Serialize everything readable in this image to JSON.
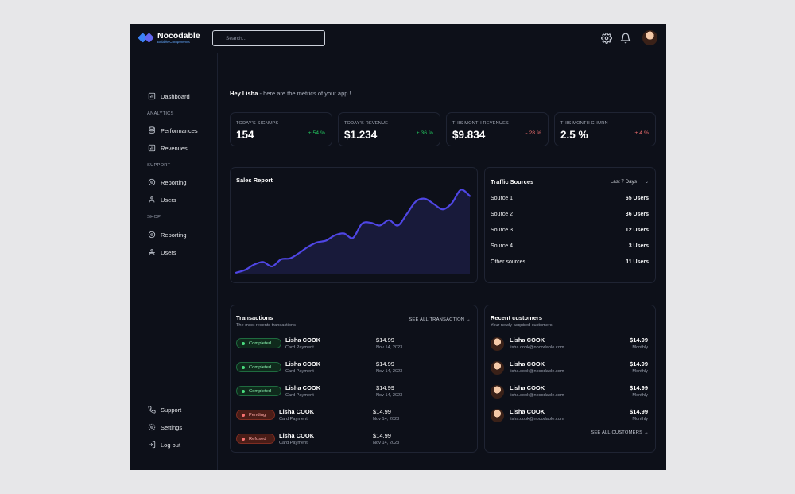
{
  "brand": {
    "name": "Nocodable",
    "subtitle": "Bubble Components",
    "accent": "#3b82f6"
  },
  "search": {
    "placeholder": "Search..."
  },
  "topbar": {
    "settings_icon": "gear-icon",
    "notifications_icon": "bell-icon"
  },
  "sidebar": {
    "dashboard": "Dashboard",
    "sections": [
      {
        "title": "ANALYTICS",
        "items": [
          "Performances",
          "Revenues"
        ]
      },
      {
        "title": "SUPPORT",
        "items": [
          "Reporting",
          "Users"
        ]
      },
      {
        "title": "SHOP",
        "items": [
          "Reporting",
          "Users"
        ]
      }
    ],
    "bottom": [
      "Support",
      "Settings",
      "Log out"
    ]
  },
  "greeting": {
    "name": "Hey Lisha",
    "message": " - here are the metrics of your app !"
  },
  "stats": [
    {
      "label": "TODAY'S SIGNUPS",
      "value": "154",
      "change": "+ 54 %",
      "trend": "up"
    },
    {
      "label": "TODAY'S REVENUE",
      "value": "$1.234",
      "change": "+ 36 %",
      "trend": "up"
    },
    {
      "label": "THIS MONTH REVENUES",
      "value": "$9.834",
      "change": "- 28 %",
      "trend": "down"
    },
    {
      "label": "THIS MONTH CHURN",
      "value": "2.5 %",
      "change": "+ 4 %",
      "trend": "down"
    }
  ],
  "sales_report": {
    "title": "Sales Report"
  },
  "chart_data": {
    "type": "area",
    "title": "Sales Report",
    "xlabel": "",
    "ylabel": "",
    "x": [
      0,
      1,
      2,
      3,
      4,
      5,
      6,
      7,
      8,
      9,
      10,
      11,
      12,
      13,
      14,
      15,
      16,
      17,
      18,
      19,
      20,
      21,
      22,
      23,
      24,
      25,
      26
    ],
    "series": [
      {
        "values": [
          2,
          5,
          11,
          14,
          9,
          17,
          18,
          24,
          31,
          36,
          38,
          44,
          46,
          41,
          57,
          58,
          55,
          61,
          55,
          68,
          82,
          85,
          79,
          73,
          80,
          95,
          88
        ]
      }
    ],
    "ylim": [
      0,
      100
    ],
    "grid": false,
    "color": "#4f46e5"
  },
  "traffic": {
    "title": "Traffic Sources",
    "period": "Last 7 Days",
    "rows": [
      {
        "label": "Source 1",
        "value": "65 Users"
      },
      {
        "label": "Source 2",
        "value": "36 Users"
      },
      {
        "label": "Source 3",
        "value": "12 Users"
      },
      {
        "label": "Source 4",
        "value": "3 Users"
      },
      {
        "label": "Other sources",
        "value": "11 Users"
      }
    ]
  },
  "transactions": {
    "title": "Transactions",
    "subtitle": "The most recents transactions",
    "see_all": "SEE ALL TRANSACTION →",
    "rows": [
      {
        "status": "Completed",
        "type": "completed",
        "name": "Lisha COOK",
        "method": "Card Payment",
        "amount": "$14.99",
        "date": "Nov 14, 2023"
      },
      {
        "status": "Completed",
        "type": "completed",
        "name": "Lisha COOK",
        "method": "Card Payment",
        "amount": "$14.99",
        "date": "Nov 14, 2023"
      },
      {
        "status": "Completed",
        "type": "completed",
        "name": "Lisha COOK",
        "method": "Card Payment",
        "amount": "$14.99",
        "date": "Nov 14, 2023"
      },
      {
        "status": "Pending",
        "type": "pending",
        "name": "Lisha COOK",
        "method": "Card Payment",
        "amount": "$14.99",
        "date": "Nov 14, 2023"
      },
      {
        "status": "Refused",
        "type": "refused",
        "name": "Lisha COOK",
        "method": "Card Payment",
        "amount": "$14.99",
        "date": "Nov 14, 2023"
      }
    ]
  },
  "customers": {
    "title": "Recent customers",
    "subtitle": "Your newly acquired customers",
    "see_all": "SEE ALL CUSTOMERS →",
    "rows": [
      {
        "name": "Lisha COOK",
        "email": "lisha.cook@nocodable.com",
        "amount": "$14.99",
        "period": "Monthly"
      },
      {
        "name": "Lisha COOK",
        "email": "lisha.cook@nocodable.com",
        "amount": "$14.99",
        "period": "Monthly"
      },
      {
        "name": "Lisha COOK",
        "email": "lisha.cook@nocodable.com",
        "amount": "$14.99",
        "period": "Monthly"
      },
      {
        "name": "Lisha COOK",
        "email": "lisha.cook@nocodable.com",
        "amount": "$14.99",
        "period": "Monthly"
      }
    ]
  }
}
